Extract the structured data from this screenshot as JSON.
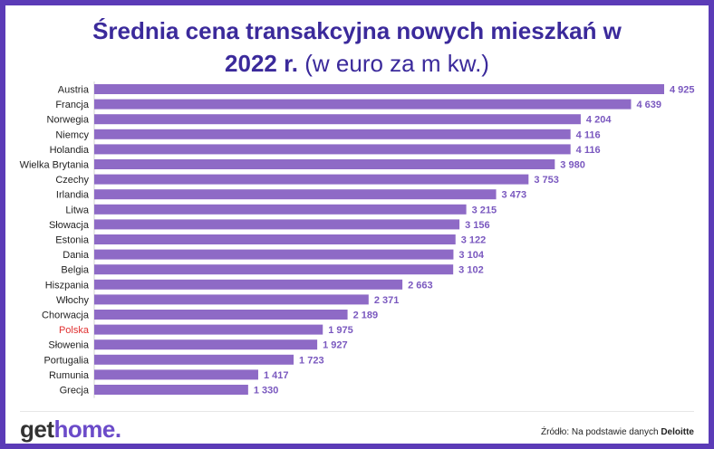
{
  "title_line1": "Średnia cena transakcyjna nowych mieszkań w",
  "title_line2_bold": "2022 r.",
  "title_line2_light": "(w euro za m kw.)",
  "logo": {
    "part1": "get",
    "part2": "home",
    "part3": "."
  },
  "source": {
    "prefix": "Źródło: Na podstawie danych",
    "brand": "Deloitte"
  },
  "colors": {
    "bar": "#8e6ac6",
    "highlight_label": "#e03030",
    "title": "#3b2a9b",
    "frame": "#5b3bb7"
  },
  "chart_data": {
    "type": "bar",
    "orientation": "horizontal",
    "categories": [
      "Austria",
      "Francja",
      "Norwegia",
      "Niemcy",
      "Holandia",
      "Wielka Brytania",
      "Czechy",
      "Irlandia",
      "Litwa",
      "Słowacja",
      "Estonia",
      "Dania",
      "Belgia",
      "Hiszpania",
      "Włochy",
      "Chorwacja",
      "Polska",
      "Słowenia",
      "Portugalia",
      "Rumunia",
      "Grecja"
    ],
    "values": [
      4925,
      4639,
      4204,
      4116,
      4116,
      3980,
      3753,
      3473,
      3215,
      3156,
      3122,
      3104,
      3102,
      2663,
      2371,
      2189,
      1975,
      1927,
      1723,
      1417,
      1330
    ],
    "value_labels": [
      "4 925",
      "4 639",
      "4 204",
      "4 116",
      "4 116",
      "3 980",
      "3 753",
      "3 473",
      "3 215",
      "3 156",
      "3 122",
      "3 104",
      "3 102",
      "2 663",
      "2 371",
      "2 189",
      "1 975",
      "1 927",
      "1 723",
      "1 417",
      "1 330"
    ],
    "highlight": "Polska",
    "xlim": [
      0,
      4925
    ],
    "grid": false,
    "legend": "none"
  }
}
